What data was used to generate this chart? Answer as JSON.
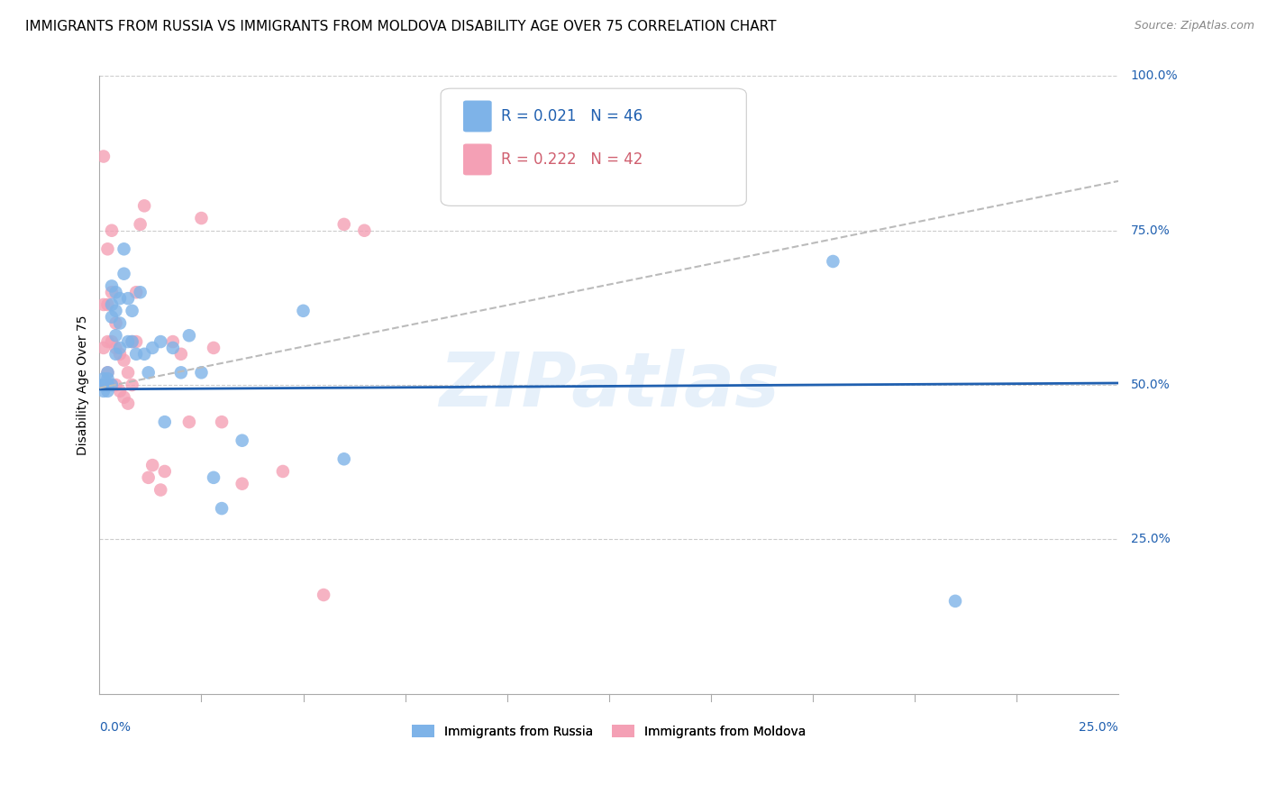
{
  "title": "IMMIGRANTS FROM RUSSIA VS IMMIGRANTS FROM MOLDOVA DISABILITY AGE OVER 75 CORRELATION CHART",
  "source": "Source: ZipAtlas.com",
  "ylabel": "Disability Age Over 75",
  "watermark": "ZIPatlas",
  "legend_russia": "Immigrants from Russia",
  "legend_moldova": "Immigrants from Moldova",
  "R_russia": 0.021,
  "N_russia": 46,
  "R_moldova": 0.222,
  "N_moldova": 42,
  "russia_color": "#7eb3e8",
  "moldova_color": "#f4a0b5",
  "russia_line_color": "#2060b0",
  "moldova_line_color": "#d06070",
  "russia_points_x": [
    0.001,
    0.001,
    0.001,
    0.001,
    0.001,
    0.002,
    0.002,
    0.002,
    0.002,
    0.002,
    0.002,
    0.003,
    0.003,
    0.003,
    0.003,
    0.004,
    0.004,
    0.004,
    0.004,
    0.005,
    0.005,
    0.005,
    0.006,
    0.006,
    0.007,
    0.007,
    0.008,
    0.008,
    0.009,
    0.01,
    0.011,
    0.012,
    0.013,
    0.015,
    0.016,
    0.018,
    0.02,
    0.022,
    0.025,
    0.028,
    0.03,
    0.035,
    0.05,
    0.06,
    0.18,
    0.21
  ],
  "russia_points_y": [
    0.5,
    0.5,
    0.51,
    0.49,
    0.5,
    0.52,
    0.5,
    0.51,
    0.5,
    0.49,
    0.5,
    0.66,
    0.63,
    0.61,
    0.5,
    0.65,
    0.62,
    0.58,
    0.55,
    0.64,
    0.6,
    0.56,
    0.72,
    0.68,
    0.64,
    0.57,
    0.62,
    0.57,
    0.55,
    0.65,
    0.55,
    0.52,
    0.56,
    0.57,
    0.44,
    0.56,
    0.52,
    0.58,
    0.52,
    0.35,
    0.3,
    0.41,
    0.62,
    0.38,
    0.7,
    0.15
  ],
  "moldova_points_x": [
    0.001,
    0.001,
    0.001,
    0.001,
    0.002,
    0.002,
    0.002,
    0.002,
    0.003,
    0.003,
    0.003,
    0.003,
    0.004,
    0.004,
    0.004,
    0.005,
    0.005,
    0.006,
    0.006,
    0.007,
    0.007,
    0.008,
    0.008,
    0.009,
    0.009,
    0.01,
    0.011,
    0.012,
    0.013,
    0.015,
    0.016,
    0.018,
    0.02,
    0.022,
    0.025,
    0.028,
    0.03,
    0.035,
    0.045,
    0.055,
    0.06,
    0.065
  ],
  "moldova_points_y": [
    0.87,
    0.63,
    0.56,
    0.5,
    0.72,
    0.63,
    0.57,
    0.52,
    0.75,
    0.65,
    0.57,
    0.5,
    0.6,
    0.56,
    0.5,
    0.55,
    0.49,
    0.54,
    0.48,
    0.52,
    0.47,
    0.57,
    0.5,
    0.65,
    0.57,
    0.76,
    0.79,
    0.35,
    0.37,
    0.33,
    0.36,
    0.57,
    0.55,
    0.44,
    0.77,
    0.56,
    0.44,
    0.34,
    0.36,
    0.16,
    0.76,
    0.75
  ],
  "xmin": 0.0,
  "xmax": 0.25,
  "ymin": 0.0,
  "ymax": 1.0,
  "gridline_y": [
    0.25,
    0.5,
    0.75,
    1.0
  ],
  "background_color": "#ffffff",
  "title_fontsize": 11,
  "axis_label_fontsize": 10,
  "tick_fontsize": 10,
  "source_fontsize": 9,
  "marker_size": 110
}
